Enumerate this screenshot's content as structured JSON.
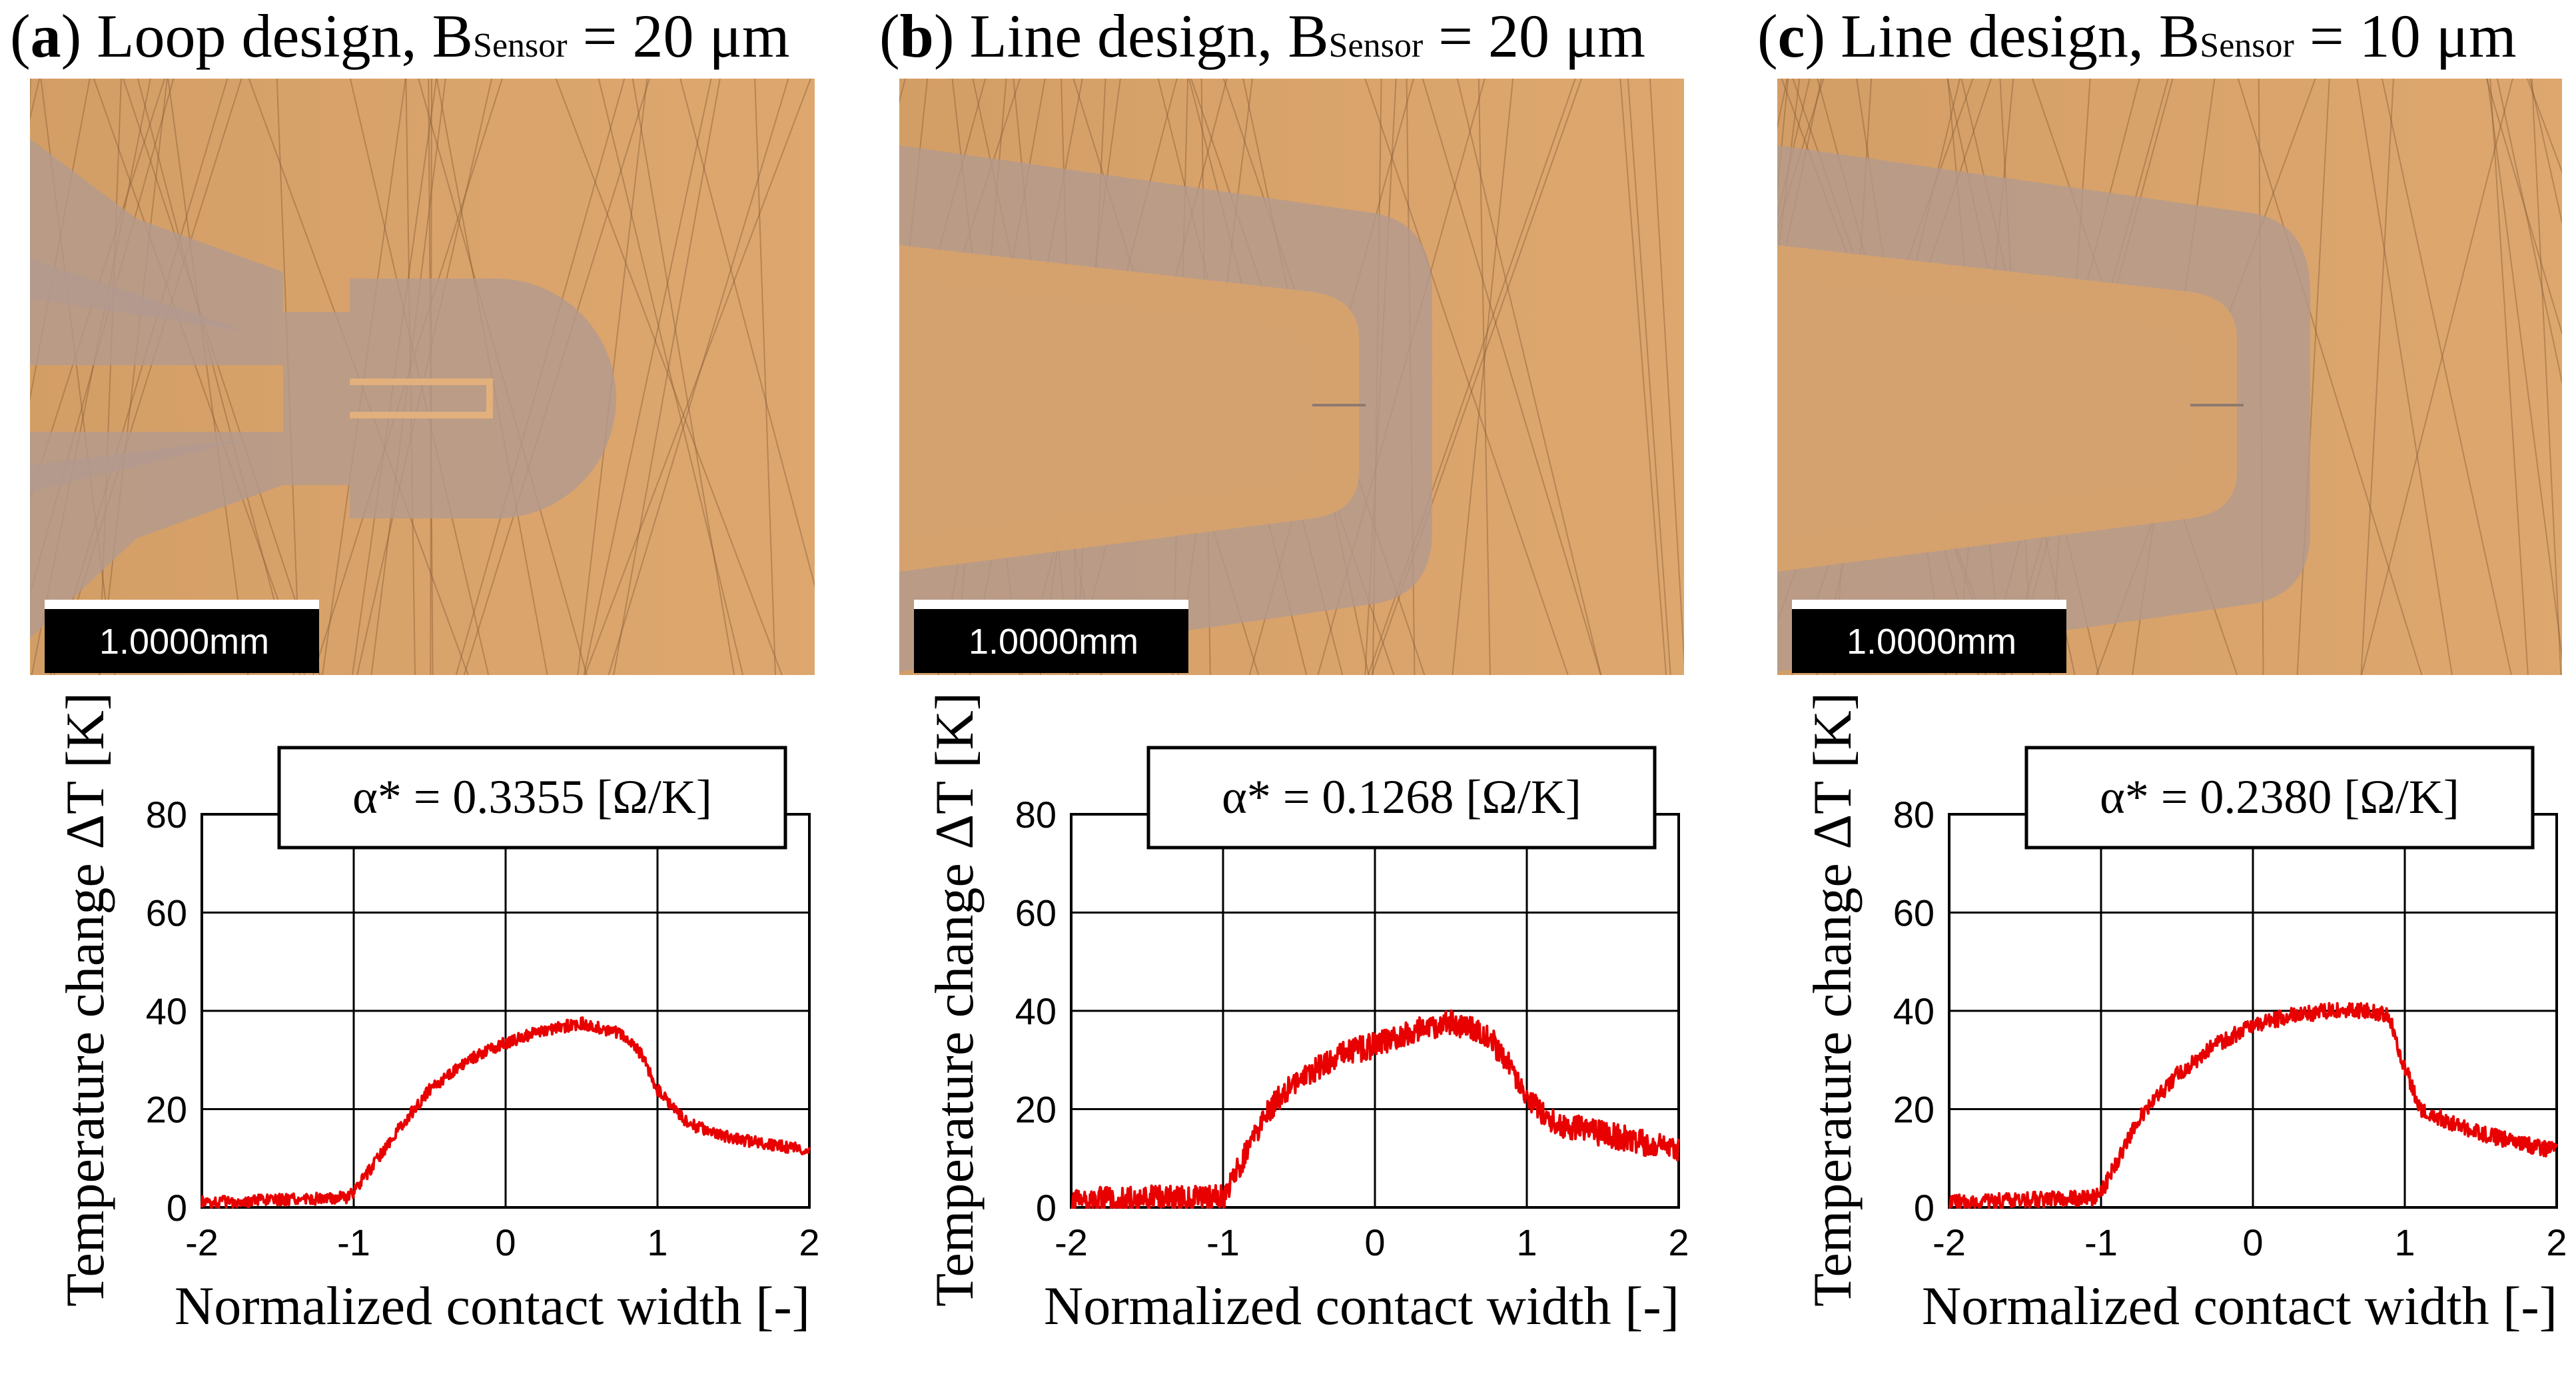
{
  "panels": [
    {
      "letter": "a",
      "design": "Loop design, B",
      "sensor_sub": "Sensor",
      "width_text": " = 20 μm",
      "scale_label": "1.0000mm",
      "alpha_label": "α* = 0.3355 [Ω/K]",
      "design_type": "loop"
    },
    {
      "letter": "b",
      "design": "Line design, B",
      "sensor_sub": "Sensor",
      "width_text": " = 20 μm",
      "scale_label": "1.0000mm",
      "alpha_label": "α* = 0.1268 [Ω/K]",
      "design_type": "line"
    },
    {
      "letter": "c",
      "design": "Line design, B",
      "sensor_sub": "Sensor",
      "width_text": " = 10 μm",
      "scale_label": "1.0000mm",
      "alpha_label": "α* = 0.2380 [Ω/K]",
      "design_type": "line"
    }
  ],
  "colors": {
    "photo_bg": "#d9a36a",
    "coating": "#b29a8f",
    "trace": "#e80000"
  },
  "chart_data": [
    {
      "type": "line",
      "title": "α* = 0.3355 [Ω/K]",
      "xlabel": "Normalized contact width [-]",
      "ylabel": "Temperature change ΔT [K]",
      "xlim": [
        -2,
        2
      ],
      "ylim": [
        0,
        80
      ],
      "xticks": [
        "-2",
        "-1",
        "0",
        "1",
        "2"
      ],
      "yticks": [
        "0",
        "20",
        "40",
        "60",
        "80"
      ],
      "grid": true,
      "noise": 1.2,
      "series": [
        {
          "name": "ΔT",
          "x": [
            -2,
            -1.5,
            -1.05,
            -1.0,
            -0.75,
            -0.5,
            -0.25,
            0,
            0.25,
            0.5,
            0.75,
            0.9,
            1.0,
            1.2,
            1.5,
            1.8,
            2.0
          ],
          "y": [
            1.0,
            1.5,
            2.0,
            3.0,
            14,
            24,
            30,
            33.5,
            36,
            37.5,
            35.5,
            31,
            24,
            17,
            14,
            12.5,
            11.5
          ]
        }
      ]
    },
    {
      "type": "line",
      "title": "α* = 0.1268 [Ω/K]",
      "xlabel": "Normalized contact width [-]",
      "ylabel": "Temperature change ΔT [K]",
      "xlim": [
        -2,
        2
      ],
      "ylim": [
        0,
        80
      ],
      "xticks": [
        "-2",
        "-1",
        "0",
        "1",
        "2"
      ],
      "yticks": [
        "0",
        "20",
        "40",
        "60",
        "80"
      ],
      "grid": true,
      "noise": 2.6,
      "series": [
        {
          "name": "ΔT",
          "x": [
            -2,
            -1.5,
            -1.0,
            -0.9,
            -0.7,
            -0.5,
            -0.25,
            0,
            0.25,
            0.5,
            0.75,
            0.9,
            1.0,
            1.2,
            1.5,
            1.8,
            2.0
          ],
          "y": [
            1.5,
            1.8,
            2.0,
            8,
            20,
            26,
            31,
            33,
            36,
            37.5,
            35,
            28,
            22,
            17,
            15,
            13,
            12
          ]
        }
      ]
    },
    {
      "type": "line",
      "title": "α* = 0.2380 [Ω/K]",
      "xlabel": "Normalized contact width [-]",
      "ylabel": "Temperature change ΔT [K]",
      "xlim": [
        -2,
        2
      ],
      "ylim": [
        0,
        80
      ],
      "xticks": [
        "-2",
        "-1",
        "0",
        "1",
        "2"
      ],
      "yticks": [
        "0",
        "20",
        "40",
        "60",
        "80"
      ],
      "grid": true,
      "noise": 1.6,
      "series": [
        {
          "name": "ΔT",
          "x": [
            -2,
            -1.5,
            -1.05,
            -1.0,
            -0.75,
            -0.5,
            -0.25,
            0,
            0.25,
            0.5,
            0.75,
            0.9,
            0.95,
            1.1,
            1.4,
            1.7,
            2.0
          ],
          "y": [
            1.0,
            1.5,
            2.0,
            3.0,
            18,
            27,
            33,
            37,
            39,
            40,
            40,
            39,
            33,
            20,
            16,
            13.5,
            11.5
          ]
        }
      ]
    }
  ]
}
